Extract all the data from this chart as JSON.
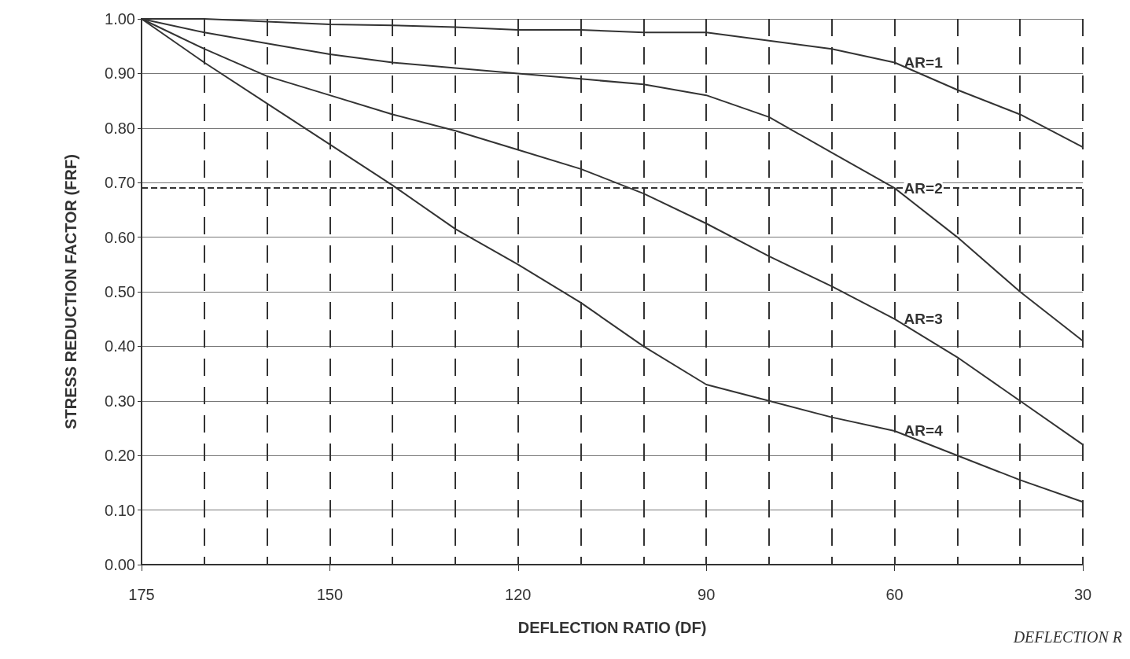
{
  "chart_data": {
    "type": "line",
    "xlabel": "DEFLECTION RATIO (DF)",
    "ylabel": "STRESS REDUCTION FACTOR (FRF)",
    "categories": [
      "175",
      null,
      null,
      "150",
      null,
      null,
      "120",
      null,
      null,
      "90",
      null,
      null,
      "60",
      null,
      null,
      "30"
    ],
    "series": [
      {
        "color": "#333333",
        "values": [
          1.0,
          1.0,
          0.995,
          0.99,
          0.988,
          0.985,
          0.98,
          0.98,
          0.975,
          0.975,
          0.96,
          0.945,
          0.92,
          0.87,
          0.825,
          0.765
        ]
      },
      {
        "color": "#333333",
        "values": [
          1.0,
          0.975,
          0.955,
          0.935,
          0.92,
          0.91,
          0.9,
          0.89,
          0.88,
          0.86,
          0.82,
          0.755,
          0.69,
          0.6,
          0.5,
          0.41
        ]
      },
      {
        "color": "#333333",
        "values": [
          1.0,
          0.945,
          0.895,
          0.86,
          0.825,
          0.795,
          0.76,
          0.725,
          0.68,
          0.625,
          0.565,
          0.51,
          0.45,
          0.38,
          0.3,
          0.22
        ]
      },
      {
        "color": "#333333",
        "values": [
          1.0,
          0.92,
          0.845,
          0.77,
          0.695,
          0.615,
          0.55,
          0.48,
          0.4,
          0.33,
          0.3,
          0.27,
          0.245,
          0.2,
          0.155,
          0.115
        ]
      }
    ],
    "annotations": [
      {
        "text": "AR=1",
        "x": "60",
        "y": 0.92
      },
      {
        "text": "AR=2",
        "x": "60",
        "y": 0.69
      },
      {
        "text": "AR=3",
        "x": "60",
        "y": 0.45
      },
      {
        "text": "AR=4",
        "x": "60",
        "y": 0.245
      },
      "DEFLECTION R"
    ],
    "ref_lines": [
      {
        "axis": "y",
        "value": 0.69,
        "line_style": "dashed",
        "color": "#333333"
      }
    ],
    "ylim": [
      0,
      1
    ],
    "yticks": [
      {
        "value": 0,
        "label": "0.00"
      },
      {
        "value": 0.1,
        "label": "0.10"
      },
      {
        "value": 0.2,
        "label": "0.20"
      },
      {
        "value": 0.3,
        "label": "0.30"
      },
      {
        "value": 0.4,
        "label": "0.40"
      },
      {
        "value": 0.5,
        "label": "0.50"
      },
      {
        "value": 0.6,
        "label": "0.60"
      },
      {
        "value": 0.7,
        "label": "0.70"
      },
      {
        "value": 0.8,
        "label": "0.80"
      },
      {
        "value": 0.9,
        "label": "0.90"
      },
      {
        "value": 1,
        "label": "1.00"
      }
    ],
    "grid": true,
    "marker": "none",
    "line_style": "solid"
  }
}
